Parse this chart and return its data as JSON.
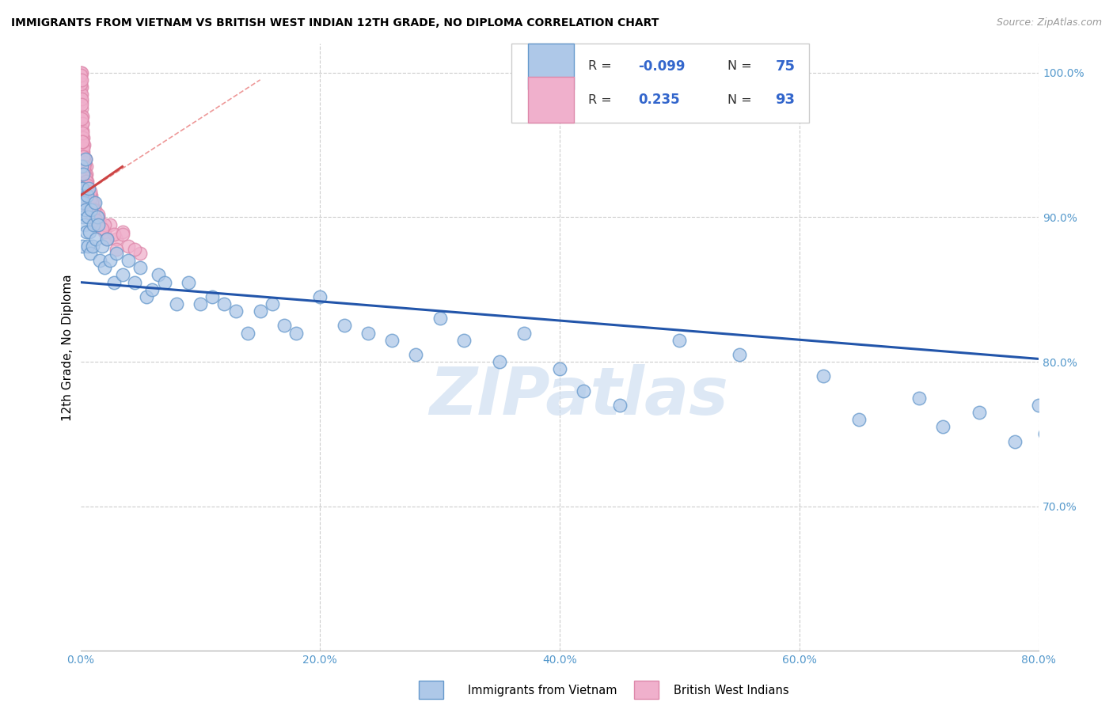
{
  "title": "IMMIGRANTS FROM VIETNAM VS BRITISH WEST INDIAN 12TH GRADE, NO DIPLOMA CORRELATION CHART",
  "source": "Source: ZipAtlas.com",
  "ylabel": "12th Grade, No Diploma",
  "blue_color": "#aec8e8",
  "pink_color": "#f0b0cc",
  "blue_edge_color": "#6699cc",
  "pink_edge_color": "#dd88aa",
  "blue_line_color": "#2255aa",
  "pink_line_color": "#cc4444",
  "pink_dash_color": "#ee9999",
  "watermark": "ZIPatlas",
  "watermark_color": "#ccddf0",
  "xlim": [
    0,
    80
  ],
  "ylim": [
    60,
    102
  ],
  "xticks": [
    0,
    20,
    40,
    60,
    80
  ],
  "yticks": [
    70,
    80,
    90,
    100
  ],
  "xticklabels": [
    "0.0%",
    "20.0%",
    "40.0%",
    "60.0%",
    "80.0%"
  ],
  "yticklabels": [
    "70.0%",
    "80.0%",
    "90.0%",
    "100.0%"
  ],
  "grid_color": "#cccccc",
  "tick_color": "#5599cc",
  "title_fontsize": 10,
  "tick_fontsize": 10,
  "legend_R_blue": "-0.099",
  "legend_N_blue": "75",
  "legend_R_pink": "0.235",
  "legend_N_pink": "93",
  "viet_x": [
    0.05,
    0.08,
    0.1,
    0.12,
    0.15,
    0.18,
    0.2,
    0.25,
    0.3,
    0.35,
    0.4,
    0.45,
    0.5,
    0.55,
    0.6,
    0.65,
    0.7,
    0.75,
    0.8,
    0.9,
    1.0,
    1.1,
    1.2,
    1.3,
    1.4,
    1.5,
    1.6,
    1.8,
    2.0,
    2.2,
    2.5,
    2.8,
    3.0,
    3.5,
    4.0,
    4.5,
    5.0,
    5.5,
    6.0,
    6.5,
    7.0,
    8.0,
    9.0,
    10.0,
    11.0,
    12.0,
    13.0,
    14.0,
    15.0,
    16.0,
    17.0,
    18.0,
    20.0,
    22.0,
    24.0,
    26.0,
    28.0,
    30.0,
    32.0,
    35.0,
    37.0,
    40.0,
    42.0,
    45.0,
    50.0,
    55.0,
    62.0,
    65.0,
    70.0,
    72.0,
    75.0,
    78.0,
    80.0,
    80.5,
    81.0
  ],
  "viet_y": [
    92.0,
    91.5,
    91.0,
    93.5,
    88.0,
    92.0,
    90.0,
    93.0,
    91.0,
    89.5,
    94.0,
    90.5,
    89.0,
    91.5,
    90.0,
    88.0,
    92.0,
    89.0,
    87.5,
    90.5,
    88.0,
    89.5,
    91.0,
    88.5,
    90.0,
    89.5,
    87.0,
    88.0,
    86.5,
    88.5,
    87.0,
    85.5,
    87.5,
    86.0,
    87.0,
    85.5,
    86.5,
    84.5,
    85.0,
    86.0,
    85.5,
    84.0,
    85.5,
    84.0,
    84.5,
    84.0,
    83.5,
    82.0,
    83.5,
    84.0,
    82.5,
    82.0,
    84.5,
    82.5,
    82.0,
    81.5,
    80.5,
    83.0,
    81.5,
    80.0,
    82.0,
    79.5,
    78.0,
    77.0,
    81.5,
    80.5,
    79.0,
    76.0,
    77.5,
    75.5,
    76.5,
    74.5,
    77.0,
    75.0,
    78.0
  ],
  "bwi_x": [
    0.02,
    0.03,
    0.04,
    0.05,
    0.06,
    0.07,
    0.08,
    0.09,
    0.1,
    0.11,
    0.12,
    0.13,
    0.14,
    0.15,
    0.16,
    0.17,
    0.18,
    0.19,
    0.2,
    0.21,
    0.22,
    0.23,
    0.25,
    0.27,
    0.3,
    0.32,
    0.35,
    0.38,
    0.4,
    0.42,
    0.45,
    0.48,
    0.5,
    0.52,
    0.55,
    0.58,
    0.6,
    0.65,
    0.7,
    0.75,
    0.8,
    0.9,
    1.0,
    1.1,
    1.2,
    1.3,
    1.5,
    1.7,
    2.0,
    2.5,
    3.0,
    3.5,
    4.0,
    5.0,
    0.35,
    0.4,
    0.25,
    0.15,
    0.08,
    0.05,
    0.03,
    0.12,
    0.18,
    0.22,
    0.28,
    0.33,
    0.42,
    0.5,
    0.6,
    0.7,
    0.8,
    1.0,
    1.5,
    2.0,
    2.8,
    3.5,
    4.5,
    0.06,
    0.09,
    0.14,
    0.19,
    0.24,
    0.29,
    0.55,
    0.65,
    0.75,
    0.85,
    0.95,
    1.1,
    1.3,
    1.8,
    2.2,
    3.0
  ],
  "bwi_y": [
    100.0,
    99.5,
    99.0,
    98.5,
    100.0,
    98.0,
    99.0,
    97.5,
    98.5,
    96.0,
    97.0,
    96.5,
    95.5,
    97.0,
    95.0,
    96.0,
    94.5,
    95.5,
    95.0,
    94.0,
    95.5,
    93.5,
    94.5,
    95.0,
    93.0,
    94.0,
    93.5,
    92.5,
    93.0,
    94.0,
    92.0,
    93.5,
    91.5,
    93.0,
    92.0,
    92.5,
    91.0,
    92.0,
    91.5,
    90.5,
    91.0,
    91.5,
    90.0,
    91.0,
    90.5,
    89.5,
    90.0,
    89.5,
    89.0,
    89.5,
    88.5,
    89.0,
    88.0,
    87.5,
    93.8,
    92.8,
    94.8,
    96.5,
    98.2,
    99.2,
    99.8,
    96.8,
    95.2,
    94.2,
    93.2,
    93.8,
    92.2,
    92.5,
    91.2,
    90.8,
    91.5,
    90.2,
    90.2,
    89.5,
    88.8,
    88.8,
    87.8,
    99.5,
    97.8,
    95.8,
    95.2,
    94.2,
    93.5,
    92.2,
    91.8,
    91.2,
    91.8,
    91.0,
    90.5,
    89.8,
    89.2,
    88.5,
    87.8
  ],
  "blue_regline": [
    [
      0,
      80
    ],
    [
      85.5,
      80.2
    ]
  ],
  "pink_regline": [
    [
      0,
      3.5
    ],
    [
      91.5,
      93.5
    ]
  ],
  "pink_dashline": [
    [
      0,
      15
    ],
    [
      91.5,
      99.5
    ]
  ]
}
